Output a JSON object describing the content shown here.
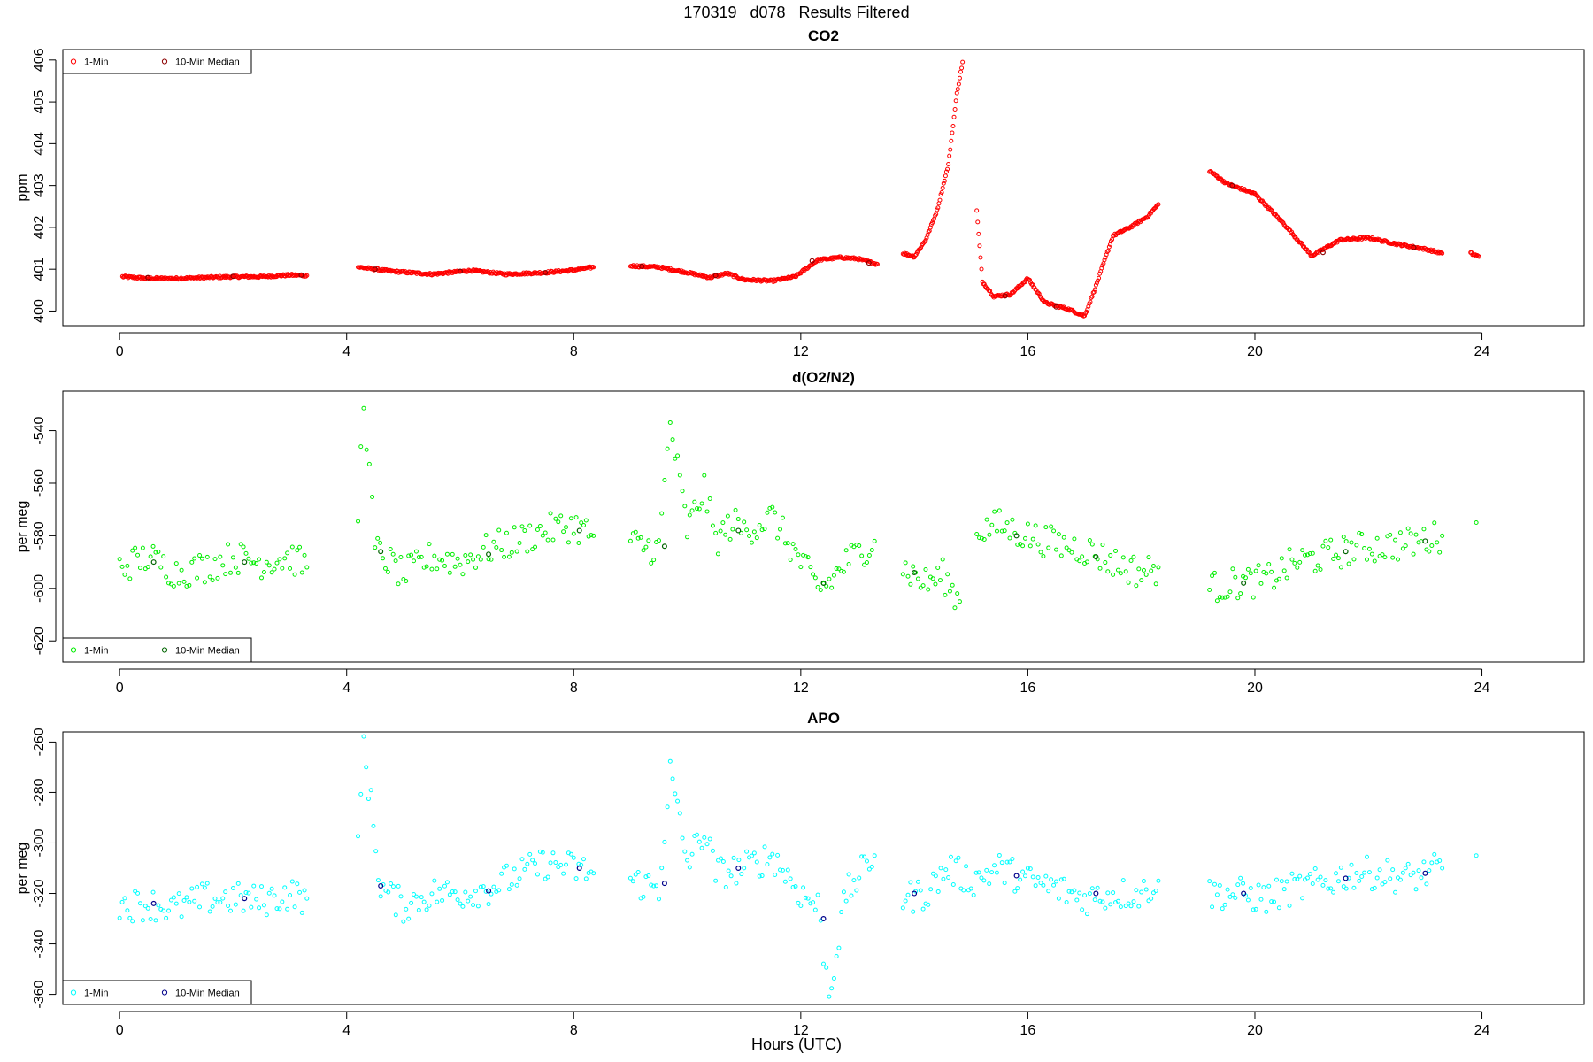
{
  "figure": {
    "title": "170319   d078   Results Filtered",
    "xlabel": "Hours (UTC)"
  },
  "chart_data": [
    {
      "type": "scatter",
      "title": "CO2",
      "ylabel": "ppm",
      "xlim": [
        -1,
        25.8
      ],
      "ylim": [
        399.65,
        406.25
      ],
      "x_ticks": [
        0,
        4,
        8,
        12,
        16,
        20,
        24
      ],
      "y_ticks": [
        400,
        401,
        402,
        403,
        404,
        405,
        406
      ],
      "legend": {
        "position": "top-left",
        "entries": [
          "1-Min",
          "10-Min Median"
        ]
      },
      "colors": {
        "one_min": "#ff0000",
        "median": "#8b0000"
      },
      "series": [
        {
          "name": "1-Min",
          "points": [
            [
              0.05,
              400.82
            ],
            [
              0.5,
              400.78
            ],
            [
              1.0,
              400.78
            ],
            [
              1.5,
              400.8
            ],
            [
              2.0,
              400.82
            ],
            [
              2.5,
              400.82
            ],
            [
              3.0,
              400.86
            ],
            [
              3.3,
              400.85
            ],
            [
              4.2,
              401.05
            ],
            [
              4.8,
              400.95
            ],
            [
              5.5,
              400.88
            ],
            [
              6.2,
              400.97
            ],
            [
              6.8,
              400.88
            ],
            [
              7.5,
              400.92
            ],
            [
              8.0,
              400.98
            ],
            [
              8.35,
              401.05
            ],
            [
              9.0,
              401.08
            ],
            [
              9.5,
              401.05
            ],
            [
              10.0,
              400.92
            ],
            [
              10.4,
              400.8
            ],
            [
              10.7,
              400.9
            ],
            [
              11.0,
              400.75
            ],
            [
              11.5,
              400.72
            ],
            [
              11.9,
              400.82
            ],
            [
              12.0,
              400.92
            ],
            [
              12.3,
              401.22
            ],
            [
              12.7,
              401.28
            ],
            [
              13.0,
              401.25
            ],
            [
              13.35,
              401.12
            ],
            [
              13.8,
              401.38
            ],
            [
              14.0,
              401.3
            ],
            [
              14.2,
              401.7
            ],
            [
              14.4,
              402.4
            ],
            [
              14.6,
              403.5
            ],
            [
              14.75,
              405.2
            ],
            [
              14.85,
              405.95
            ],
            [
              15.1,
              402.4
            ],
            [
              15.2,
              400.7
            ],
            [
              15.4,
              400.35
            ],
            [
              15.7,
              400.4
            ],
            [
              16.0,
              400.78
            ],
            [
              16.3,
              400.2
            ],
            [
              16.7,
              400.05
            ],
            [
              17.0,
              399.88
            ],
            [
              17.2,
              400.6
            ],
            [
              17.5,
              401.8
            ],
            [
              17.8,
              402.0
            ],
            [
              18.1,
              402.25
            ],
            [
              18.3,
              402.55
            ],
            [
              19.2,
              403.35
            ],
            [
              19.5,
              403.05
            ],
            [
              20.0,
              402.8
            ],
            [
              20.5,
              402.1
            ],
            [
              21.0,
              401.32
            ],
            [
              21.5,
              401.7
            ],
            [
              22.0,
              401.75
            ],
            [
              22.5,
              401.6
            ],
            [
              23.0,
              401.48
            ],
            [
              23.3,
              401.38
            ],
            [
              23.8,
              401.38
            ],
            [
              23.95,
              401.3
            ]
          ]
        },
        {
          "name": "10-Min Median",
          "points": [
            [
              0.5,
              400.8
            ],
            [
              2.0,
              400.83
            ],
            [
              3.2,
              400.86
            ],
            [
              4.5,
              401.0
            ],
            [
              6.0,
              400.95
            ],
            [
              7.5,
              400.92
            ],
            [
              9.2,
              401.07
            ],
            [
              10.5,
              400.85
            ],
            [
              12.2,
              401.2
            ],
            [
              13.2,
              401.15
            ],
            [
              15.6,
              400.36
            ],
            [
              16.5,
              400.1
            ],
            [
              19.6,
              403.0
            ],
            [
              21.2,
              401.4
            ],
            [
              22.8,
              401.52
            ]
          ]
        }
      ]
    },
    {
      "type": "scatter",
      "title": "d(O2/N2)",
      "ylabel": "per meg",
      "xlim": [
        -1,
        25.8
      ],
      "ylim": [
        -628,
        -525
      ],
      "x_ticks": [
        0,
        4,
        8,
        12,
        16,
        20,
        24
      ],
      "y_ticks": [
        -620,
        -600,
        -580,
        -560,
        -540
      ],
      "legend": {
        "position": "bottom-left",
        "entries": [
          "1-Min",
          "10-Min Median"
        ]
      },
      "colors": {
        "one_min": "#00ee00",
        "median": "#006400"
      },
      "series": [
        {
          "name": "1-Min",
          "points": [
            [
              0.0,
              -592
            ],
            [
              0.5,
              -588
            ],
            [
              1.0,
              -594
            ],
            [
              1.5,
              -592
            ],
            [
              2.0,
              -588
            ],
            [
              2.5,
              -590
            ],
            [
              3.0,
              -588
            ],
            [
              3.3,
              -592
            ],
            [
              4.2,
              -572
            ],
            [
              4.3,
              -527
            ],
            [
              4.5,
              -585
            ],
            [
              5.0,
              -595
            ],
            [
              5.5,
              -588
            ],
            [
              6.0,
              -590
            ],
            [
              6.5,
              -585
            ],
            [
              7.0,
              -582
            ],
            [
              7.5,
              -578
            ],
            [
              8.0,
              -576
            ],
            [
              8.35,
              -580
            ],
            [
              9.0,
              -583
            ],
            [
              9.5,
              -585
            ],
            [
              9.7,
              -537
            ],
            [
              10.0,
              -578
            ],
            [
              10.3,
              -562
            ],
            [
              10.5,
              -582
            ],
            [
              10.8,
              -575
            ],
            [
              11.0,
              -578
            ],
            [
              11.5,
              -573
            ],
            [
              12.0,
              -590
            ],
            [
              12.3,
              -600
            ],
            [
              12.5,
              -598
            ],
            [
              12.8,
              -590
            ],
            [
              13.3,
              -582
            ],
            [
              13.8,
              -592
            ],
            [
              14.2,
              -598
            ],
            [
              14.5,
              -595
            ],
            [
              14.8,
              -605
            ],
            [
              15.1,
              -578
            ],
            [
              15.5,
              -576
            ],
            [
              16.0,
              -580
            ],
            [
              16.5,
              -583
            ],
            [
              17.0,
              -585
            ],
            [
              17.5,
              -590
            ],
            [
              18.0,
              -594
            ],
            [
              18.3,
              -592
            ],
            [
              19.2,
              -600
            ],
            [
              19.7,
              -598
            ],
            [
              20.2,
              -597
            ],
            [
              20.7,
              -590
            ],
            [
              21.2,
              -588
            ],
            [
              21.7,
              -585
            ],
            [
              22.2,
              -584
            ],
            [
              22.7,
              -583
            ],
            [
              23.3,
              -580
            ],
            [
              23.9,
              -575
            ]
          ]
        },
        {
          "name": "10-Min Median",
          "points": [
            [
              0.6,
              -590
            ],
            [
              2.2,
              -590
            ],
            [
              4.6,
              -586
            ],
            [
              6.5,
              -587
            ],
            [
              8.1,
              -578
            ],
            [
              9.6,
              -584
            ],
            [
              10.9,
              -578
            ],
            [
              12.4,
              -598
            ],
            [
              14.0,
              -594
            ],
            [
              15.8,
              -580
            ],
            [
              17.2,
              -588
            ],
            [
              19.8,
              -598
            ],
            [
              21.6,
              -586
            ],
            [
              23.0,
              -582
            ]
          ]
        }
      ]
    },
    {
      "type": "scatter",
      "title": "APO",
      "ylabel": "per meg",
      "xlim": [
        -1,
        25.8
      ],
      "ylim": [
        -364,
        -256
      ],
      "x_ticks": [
        0,
        4,
        8,
        12,
        16,
        20,
        24
      ],
      "y_ticks": [
        -360,
        -340,
        -320,
        -300,
        -280,
        -260
      ],
      "legend": {
        "position": "bottom-left",
        "entries": [
          "1-Min",
          "10-Min Median"
        ]
      },
      "colors": {
        "one_min": "#00ffff",
        "median": "#00008b"
      },
      "series": [
        {
          "name": "1-Min",
          "points": [
            [
              0.0,
              -325
            ],
            [
              0.5,
              -324
            ],
            [
              1.0,
              -326
            ],
            [
              1.5,
              -322
            ],
            [
              2.0,
              -322
            ],
            [
              2.5,
              -323
            ],
            [
              3.0,
              -320
            ],
            [
              3.3,
              -322
            ],
            [
              4.2,
              -303
            ],
            [
              4.3,
              -260
            ],
            [
              4.6,
              -318
            ],
            [
              5.0,
              -325
            ],
            [
              5.5,
              -320
            ],
            [
              6.0,
              -320
            ],
            [
              6.5,
              -318
            ],
            [
              7.0,
              -313
            ],
            [
              7.5,
              -308
            ],
            [
              8.0,
              -310
            ],
            [
              8.35,
              -312
            ],
            [
              9.0,
              -315
            ],
            [
              9.5,
              -318
            ],
            [
              9.7,
              -272
            ],
            [
              10.0,
              -308
            ],
            [
              10.3,
              -295
            ],
            [
              10.5,
              -312
            ],
            [
              11.0,
              -310
            ],
            [
              11.5,
              -305
            ],
            [
              12.0,
              -320
            ],
            [
              12.3,
              -325
            ],
            [
              12.5,
              -360
            ],
            [
              12.8,
              -320
            ],
            [
              13.3,
              -305
            ],
            [
              13.8,
              -322
            ],
            [
              14.2,
              -320
            ],
            [
              14.6,
              -310
            ],
            [
              15.0,
              -315
            ],
            [
              15.5,
              -310
            ],
            [
              16.0,
              -315
            ],
            [
              16.5,
              -318
            ],
            [
              17.0,
              -322
            ],
            [
              17.5,
              -320
            ],
            [
              18.0,
              -320
            ],
            [
              18.3,
              -315
            ],
            [
              19.2,
              -320
            ],
            [
              19.7,
              -320
            ],
            [
              20.2,
              -322
            ],
            [
              20.7,
              -318
            ],
            [
              21.2,
              -316
            ],
            [
              21.7,
              -312
            ],
            [
              22.2,
              -312
            ],
            [
              22.7,
              -314
            ],
            [
              23.3,
              -310
            ],
            [
              23.9,
              -305
            ]
          ]
        },
        {
          "name": "10-Min Median",
          "points": [
            [
              0.6,
              -324
            ],
            [
              2.2,
              -322
            ],
            [
              4.6,
              -317
            ],
            [
              6.5,
              -319
            ],
            [
              8.1,
              -310
            ],
            [
              9.6,
              -316
            ],
            [
              10.9,
              -310
            ],
            [
              12.4,
              -330
            ],
            [
              14.0,
              -320
            ],
            [
              15.8,
              -313
            ],
            [
              17.2,
              -320
            ],
            [
              19.8,
              -320
            ],
            [
              21.6,
              -314
            ],
            [
              23.0,
              -312
            ]
          ]
        }
      ]
    }
  ]
}
